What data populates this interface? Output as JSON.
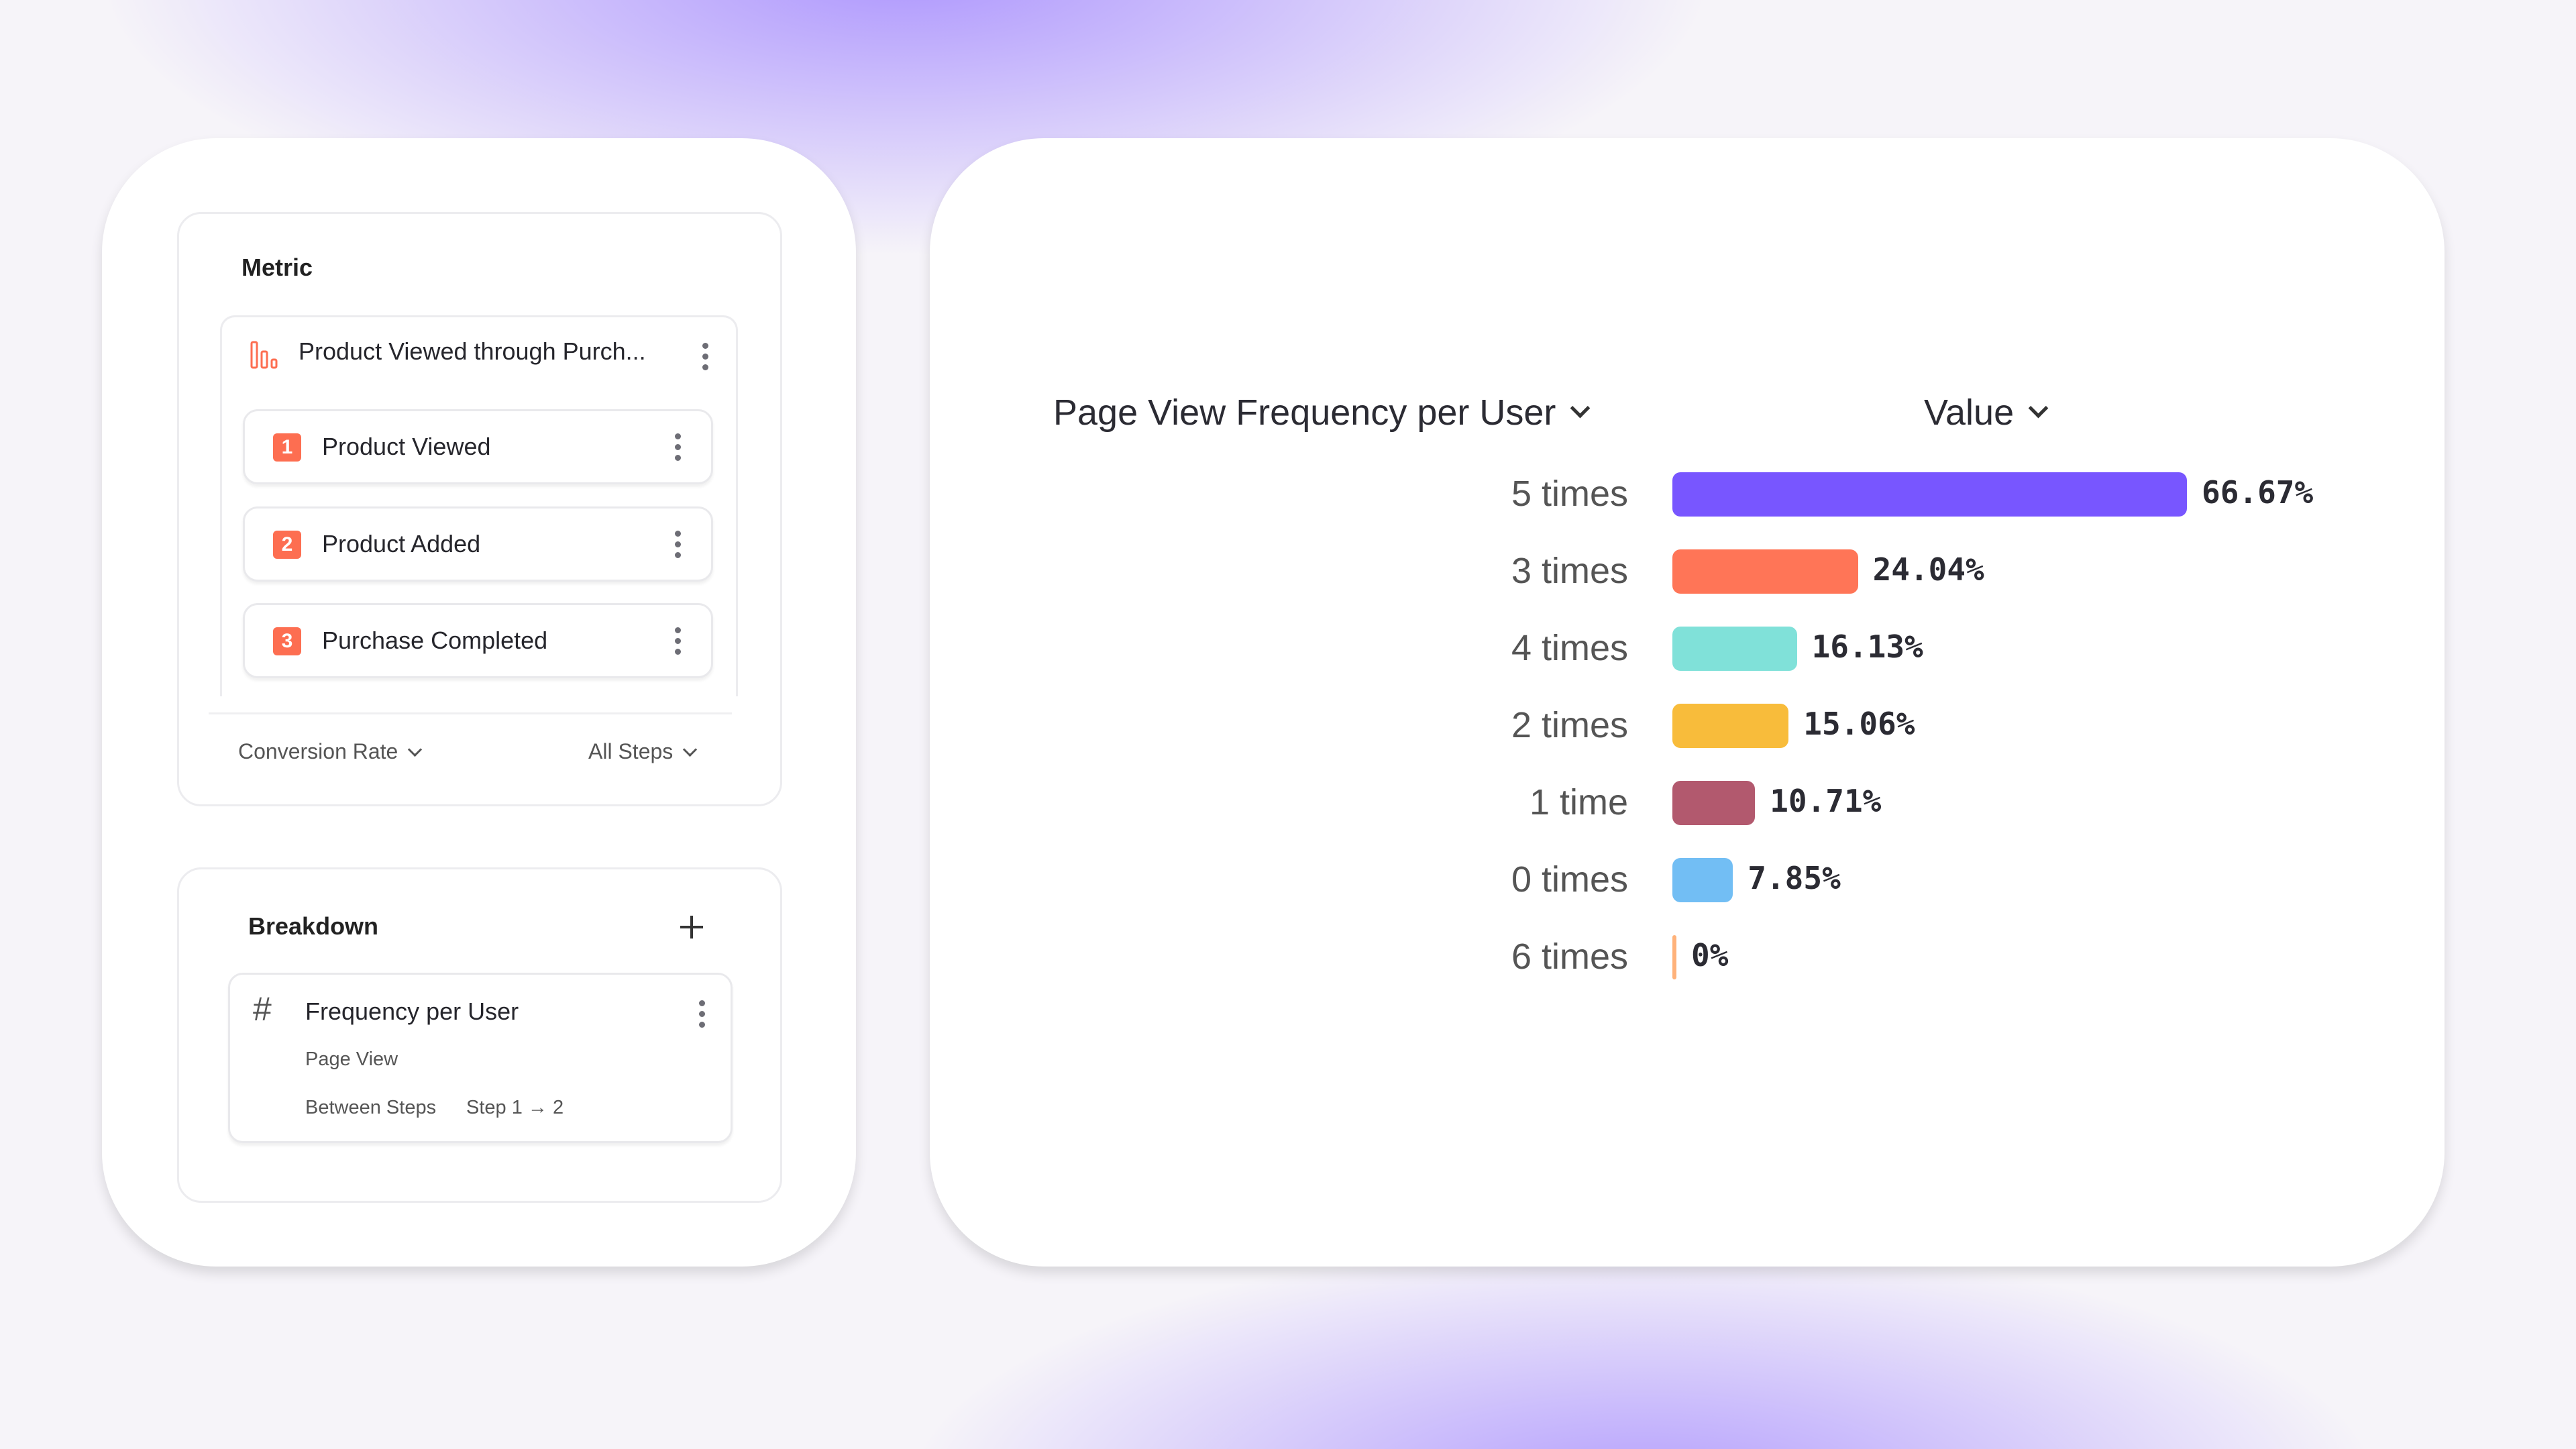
{
  "metric": {
    "heading": "Metric",
    "funnel": {
      "title": "Product Viewed through Purch...",
      "icon": "funnel-bars-icon"
    },
    "steps": [
      {
        "number": "1",
        "label": "Product Viewed"
      },
      {
        "number": "2",
        "label": "Product Added"
      },
      {
        "number": "3",
        "label": "Purchase Completed"
      }
    ],
    "measure_dropdown": "Conversion Rate",
    "steps_dropdown": "All Steps"
  },
  "breakdown": {
    "heading": "Breakdown",
    "item": {
      "title": "Frequency per User",
      "event": "Page View",
      "scope_label": "Between Steps",
      "scope_value": "Step 1 → 2",
      "icon": "hash-icon"
    }
  },
  "chart_data": {
    "type": "bar",
    "orientation": "horizontal",
    "category_header": "Page View Frequency per User",
    "value_header": "Value",
    "categories": [
      "5 times",
      "3 times",
      "4 times",
      "2 times",
      "1 time",
      "0 times",
      "6 times"
    ],
    "values": [
      66.67,
      24.04,
      16.13,
      15.06,
      10.71,
      7.85,
      0
    ],
    "value_labels": [
      "66.67%",
      "24.04%",
      "16.13%",
      "15.06%",
      "10.71%",
      "7.85%",
      "0%"
    ],
    "colors": [
      "#7856ff",
      "#ff7557",
      "#80e1d9",
      "#f8bc3b",
      "#b2596e",
      "#72bef4",
      "#ffb27a"
    ],
    "unit": "%"
  },
  "colors": {
    "accent": "#fd6e51",
    "background": "#f6f4f9"
  }
}
